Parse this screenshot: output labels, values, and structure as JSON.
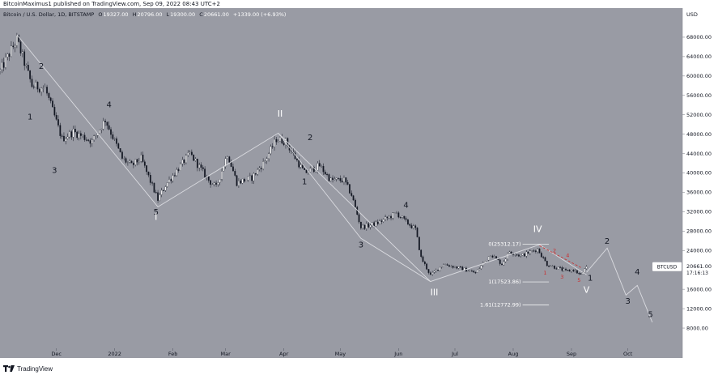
{
  "header": {
    "published": "BitcoinMaximus1 published on TradingView.com, Sep 09, 2022 08:43 UTC+2"
  },
  "footer": {
    "brand": "TradingView"
  },
  "colors": {
    "background": "#999ba4",
    "candle_up": "#ffffff",
    "candle_down": "#131722",
    "wave_line": "#dadbe0",
    "dark_label": "#131722",
    "white_label": "#ffffff",
    "red_label": "#cc2b2b",
    "price_tag_bg": "#ffffff"
  },
  "chart_data": {
    "type": "candlestick",
    "symbol_line": "Bitcoin / U.S. Dollar, 1D, BITSTAMP",
    "ohlc": {
      "o_label": "O",
      "o": "19327.00",
      "h_label": "H",
      "h": "20796.00",
      "l_label": "L",
      "l": "19300.00",
      "c_label": "C",
      "c": "20661.00",
      "change": "+1339.00 (+6.93%)"
    },
    "currency": "USD",
    "y_ticks": [
      "68000.00",
      "64000.00",
      "60000.00",
      "56000.00",
      "52000.00",
      "48000.00",
      "44000.00",
      "40000.00",
      "36000.00",
      "32000.00",
      "28000.00",
      "24000.00",
      "16000.00",
      "12000.00",
      "8000.00"
    ],
    "y_tick_values": [
      68000,
      64000,
      60000,
      56000,
      52000,
      48000,
      44000,
      40000,
      36000,
      32000,
      28000,
      24000,
      16000,
      12000,
      8000
    ],
    "ylim": [
      4500,
      73000
    ],
    "x_ticks": [
      "Dec",
      "2022",
      "Feb",
      "Mar",
      "Apr",
      "May",
      "Jun",
      "Jul",
      "Aug",
      "Sep",
      "Oct"
    ],
    "x_tick_dates": [
      "2021-12-01",
      "2022-01-01",
      "2022-02-01",
      "2022-03-01",
      "2022-04-01",
      "2022-05-01",
      "2022-06-01",
      "2022-07-01",
      "2022-08-01",
      "2022-09-01",
      "2022-10-01"
    ],
    "xlim": [
      "2021-11-01",
      "2022-10-30"
    ],
    "price_tag": {
      "symbol": "BTCUSD",
      "value": "20661.00",
      "countdown": "17:16:13",
      "price": 20661
    },
    "path": [
      [
        "2021-11-01",
        61000
      ],
      [
        "2021-11-10",
        67500
      ],
      [
        "2021-11-18",
        58000
      ],
      [
        "2021-11-25",
        57500
      ],
      [
        "2021-12-04",
        47000
      ],
      [
        "2021-12-10",
        48500
      ],
      [
        "2021-12-20",
        46500
      ],
      [
        "2021-12-27",
        51000
      ],
      [
        "2022-01-05",
        43000
      ],
      [
        "2022-01-10",
        41500
      ],
      [
        "2022-01-15",
        43000
      ],
      [
        "2022-01-24",
        34500
      ],
      [
        "2022-01-28",
        37500
      ],
      [
        "2022-02-04",
        41000
      ],
      [
        "2022-02-10",
        44000
      ],
      [
        "2022-02-20",
        38500
      ],
      [
        "2022-02-24",
        37000
      ],
      [
        "2022-03-02",
        44000
      ],
      [
        "2022-03-07",
        38000
      ],
      [
        "2022-03-15",
        39000
      ],
      [
        "2022-03-22",
        42500
      ],
      [
        "2022-03-28",
        47000
      ],
      [
        "2022-04-02",
        46500
      ],
      [
        "2022-04-08",
        42500
      ],
      [
        "2022-04-12",
        40000
      ],
      [
        "2022-04-20",
        41500
      ],
      [
        "2022-04-26",
        38500
      ],
      [
        "2022-05-03",
        38500
      ],
      [
        "2022-05-07",
        35500
      ],
      [
        "2022-05-12",
        28800
      ],
      [
        "2022-05-20",
        29500
      ],
      [
        "2022-05-31",
        31700
      ],
      [
        "2022-06-05",
        29900
      ],
      [
        "2022-06-10",
        28400
      ],
      [
        "2022-06-13",
        22500
      ],
      [
        "2022-06-18",
        18900
      ],
      [
        "2022-06-25",
        21200
      ],
      [
        "2022-07-05",
        20200
      ],
      [
        "2022-07-12",
        19400
      ],
      [
        "2022-07-20",
        23300
      ],
      [
        "2022-07-26",
        21200
      ],
      [
        "2022-07-30",
        23800
      ],
      [
        "2022-08-05",
        22900
      ],
      [
        "2022-08-14",
        24300
      ],
      [
        "2022-08-19",
        21100
      ],
      [
        "2022-08-26",
        20200
      ],
      [
        "2022-08-29",
        19700
      ],
      [
        "2022-09-02",
        20000
      ],
      [
        "2022-09-06",
        18900
      ],
      [
        "2022-09-09",
        20661
      ]
    ],
    "wave_lines": [
      [
        [
          "2021-11-10",
          68500
        ],
        [
          "2022-01-24",
          33000
        ],
        [
          "2022-03-29",
          48200
        ],
        [
          "2022-06-18",
          17600
        ],
        [
          "2022-08-15",
          25200
        ],
        [
          "2022-09-09",
          19000
        ]
      ],
      [
        [
          "2022-03-29",
          48200
        ],
        [
          "2022-05-12",
          26500
        ],
        [
          "2022-06-18",
          17600
        ]
      ],
      [
        [
          "2022-09-09",
          19500
        ],
        [
          "2022-09-20",
          24500
        ],
        [
          "2022-09-30",
          14800
        ],
        [
          "2022-10-06",
          16800
        ],
        [
          "2022-10-14",
          9200
        ]
      ]
    ],
    "red_line": [
      [
        "2022-08-15",
        25000
      ],
      [
        "2022-09-06",
        20500
      ]
    ],
    "wave_labels": [
      {
        "text": "2",
        "date": "2021-11-23",
        "price": 61500,
        "color": "dark"
      },
      {
        "text": "1",
        "date": "2021-11-17",
        "price": 51000,
        "color": "dark"
      },
      {
        "text": "4",
        "date": "2021-12-29",
        "price": 53500,
        "color": "dark"
      },
      {
        "text": "3",
        "date": "2021-11-30",
        "price": 40000,
        "color": "dark"
      },
      {
        "text": "5",
        "date": "2022-01-23",
        "price": 31400,
        "color": "dark"
      },
      {
        "text": "I",
        "date": "2022-01-23",
        "price": 30300,
        "color": "white"
      },
      {
        "text": "II",
        "date": "2022-03-30",
        "price": 51600,
        "color": "white"
      },
      {
        "text": "2",
        "date": "2022-04-15",
        "price": 46800,
        "color": "dark"
      },
      {
        "text": "1",
        "date": "2022-04-12",
        "price": 37700,
        "color": "dark"
      },
      {
        "text": "3",
        "date": "2022-05-12",
        "price": 24600,
        "color": "dark"
      },
      {
        "text": "4",
        "date": "2022-06-05",
        "price": 32800,
        "color": "dark"
      },
      {
        "text": "III",
        "date": "2022-06-20",
        "price": 14800,
        "color": "white"
      },
      {
        "text": "IV",
        "date": "2022-08-14",
        "price": 27800,
        "color": "white"
      },
      {
        "text": "2",
        "date": "2022-09-20",
        "price": 25400,
        "color": "dark"
      },
      {
        "text": "1",
        "date": "2022-09-11",
        "price": 17800,
        "color": "dark"
      },
      {
        "text": "V",
        "date": "2022-09-09",
        "price": 15300,
        "color": "white"
      },
      {
        "text": "4",
        "date": "2022-10-06",
        "price": 19000,
        "color": "dark"
      },
      {
        "text": "3",
        "date": "2022-10-01",
        "price": 13000,
        "color": "dark"
      },
      {
        "text": "5",
        "date": "2022-10-13",
        "price": 10300,
        "color": "dark"
      }
    ],
    "red_labels": [
      {
        "text": "2",
        "date": "2022-08-23",
        "price": 23600
      },
      {
        "text": "4",
        "date": "2022-08-30",
        "price": 22600
      },
      {
        "text": "1",
        "date": "2022-08-18",
        "price": 19000
      },
      {
        "text": "3",
        "date": "2022-08-27",
        "price": 18200
      },
      {
        "text": "5",
        "date": "2022-09-05",
        "price": 17500
      }
    ],
    "fib_levels": [
      {
        "label": "0(25312.17)",
        "price": 25312,
        "from": "2022-08-06",
        "to": "2022-08-20"
      },
      {
        "label": "1(17523.86)",
        "price": 17524,
        "from": "2022-08-06",
        "to": "2022-08-20"
      },
      {
        "label": "1.61(12772.99)",
        "price": 12773,
        "from": "2022-08-06",
        "to": "2022-08-20"
      }
    ]
  }
}
